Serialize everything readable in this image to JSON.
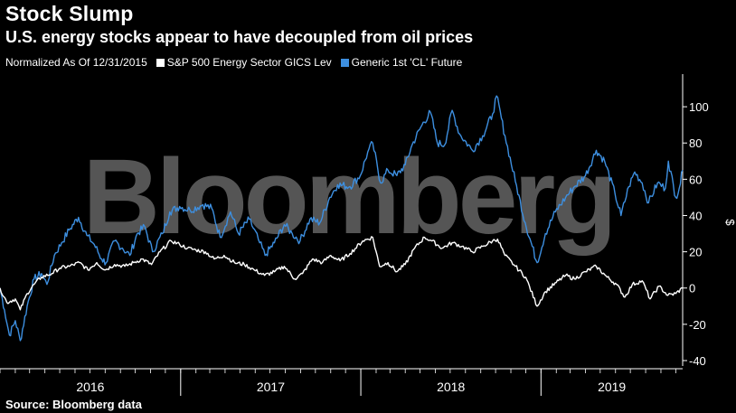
{
  "header": {
    "title": "Stock Slump",
    "subtitle": "U.S. energy stocks appear to have decoupled from oil prices",
    "normalized_note": "Normalized As Of 12/31/2015"
  },
  "watermark": "Bloomberg",
  "source": "Source: Bloomberg data",
  "colors": {
    "background": "#000000",
    "sp500_energy": "#ffffff",
    "crude": "#3d8fe0",
    "axis": "#ffffff"
  },
  "chart_data": {
    "type": "line",
    "title": "Stock Slump",
    "subtitle": "U.S. energy stocks appear to have decoupled from oil prices",
    "ylabel": "$",
    "ylim": [
      -43,
      118
    ],
    "y_ticks": [
      -40,
      -20,
      0,
      20,
      40,
      60,
      80,
      100
    ],
    "y_tick_labels": [
      "-40",
      "-20",
      "0",
      "20",
      "40",
      "60",
      "80",
      "100"
    ],
    "x_range": [
      "2016-01-01",
      "2019-10-15"
    ],
    "x_labels": [
      "2016",
      "2017",
      "2018",
      "2019"
    ],
    "grid": false,
    "legend_position": "top-left",
    "series": [
      {
        "name": "S&P 500 Energy Sector GICS Lev",
        "color": "#ffffff",
        "points": [
          [
            "2016-01-01",
            0
          ],
          [
            "2016-01-15",
            -8
          ],
          [
            "2016-02-01",
            -6
          ],
          [
            "2016-02-11",
            -12
          ],
          [
            "2016-02-25",
            -3
          ],
          [
            "2016-03-10",
            2
          ],
          [
            "2016-03-25",
            6
          ],
          [
            "2016-04-15",
            8
          ],
          [
            "2016-05-01",
            11
          ],
          [
            "2016-05-20",
            12
          ],
          [
            "2016-06-10",
            14
          ],
          [
            "2016-06-27",
            10
          ],
          [
            "2016-07-15",
            14
          ],
          [
            "2016-08-01",
            10
          ],
          [
            "2016-08-20",
            13
          ],
          [
            "2016-09-10",
            12
          ],
          [
            "2016-09-28",
            14
          ],
          [
            "2016-10-15",
            16
          ],
          [
            "2016-11-03",
            13
          ],
          [
            "2016-11-20",
            20
          ],
          [
            "2016-12-13",
            26
          ],
          [
            "2016-12-30",
            24
          ],
          [
            "2017-01-15",
            22
          ],
          [
            "2017-02-01",
            21
          ],
          [
            "2017-02-20",
            20
          ],
          [
            "2017-03-10",
            16
          ],
          [
            "2017-03-30",
            18
          ],
          [
            "2017-04-20",
            14
          ],
          [
            "2017-05-10",
            13
          ],
          [
            "2017-05-30",
            10
          ],
          [
            "2017-06-20",
            7
          ],
          [
            "2017-07-10",
            9
          ],
          [
            "2017-07-30",
            12
          ],
          [
            "2017-08-20",
            5
          ],
          [
            "2017-09-05",
            8
          ],
          [
            "2017-09-25",
            16
          ],
          [
            "2017-10-15",
            14
          ],
          [
            "2017-11-01",
            18
          ],
          [
            "2017-11-20",
            15
          ],
          [
            "2017-12-10",
            19
          ],
          [
            "2018-01-05",
            26
          ],
          [
            "2018-01-25",
            28
          ],
          [
            "2018-02-08",
            12
          ],
          [
            "2018-02-25",
            14
          ],
          [
            "2018-03-15",
            9
          ],
          [
            "2018-04-01",
            13
          ],
          [
            "2018-04-20",
            22
          ],
          [
            "2018-05-10",
            28
          ],
          [
            "2018-05-25",
            26
          ],
          [
            "2018-06-15",
            22
          ],
          [
            "2018-07-05",
            25
          ],
          [
            "2018-07-25",
            23
          ],
          [
            "2018-08-15",
            20
          ],
          [
            "2018-09-05",
            23
          ],
          [
            "2018-09-25",
            26
          ],
          [
            "2018-10-05",
            27
          ],
          [
            "2018-10-20",
            18
          ],
          [
            "2018-11-10",
            12
          ],
          [
            "2018-12-01",
            6
          ],
          [
            "2018-12-24",
            -10
          ],
          [
            "2019-01-10",
            -2
          ],
          [
            "2019-02-01",
            3
          ],
          [
            "2019-02-20",
            7
          ],
          [
            "2019-03-10",
            5
          ],
          [
            "2019-04-01",
            9
          ],
          [
            "2019-04-23",
            12
          ],
          [
            "2019-05-15",
            6
          ],
          [
            "2019-06-03",
            2
          ],
          [
            "2019-06-20",
            -5
          ],
          [
            "2019-07-05",
            2
          ],
          [
            "2019-07-25",
            4
          ],
          [
            "2019-08-10",
            -6
          ],
          [
            "2019-08-28",
            1
          ],
          [
            "2019-09-15",
            -4
          ],
          [
            "2019-10-01",
            -3
          ],
          [
            "2019-10-15",
            0
          ]
        ]
      },
      {
        "name": "Generic 1st 'CL' Future",
        "color": "#3d8fe0",
        "points": [
          [
            "2016-01-01",
            0
          ],
          [
            "2016-01-10",
            -12
          ],
          [
            "2016-01-20",
            -26
          ],
          [
            "2016-02-01",
            -18
          ],
          [
            "2016-02-11",
            -29
          ],
          [
            "2016-02-25",
            -10
          ],
          [
            "2016-03-10",
            5
          ],
          [
            "2016-03-25",
            8
          ],
          [
            "2016-04-05",
            2
          ],
          [
            "2016-04-20",
            18
          ],
          [
            "2016-05-05",
            25
          ],
          [
            "2016-05-20",
            32
          ],
          [
            "2016-06-08",
            39
          ],
          [
            "2016-06-25",
            29
          ],
          [
            "2016-07-10",
            24
          ],
          [
            "2016-07-25",
            16
          ],
          [
            "2016-08-03",
            14
          ],
          [
            "2016-08-20",
            26
          ],
          [
            "2016-09-05",
            22
          ],
          [
            "2016-09-20",
            18
          ],
          [
            "2016-10-05",
            30
          ],
          [
            "2016-10-20",
            34
          ],
          [
            "2016-11-05",
            20
          ],
          [
            "2016-11-25",
            30
          ],
          [
            "2016-12-10",
            42
          ],
          [
            "2016-12-30",
            45
          ],
          [
            "2017-01-20",
            43
          ],
          [
            "2017-02-15",
            46
          ],
          [
            "2017-03-05",
            44
          ],
          [
            "2017-03-22",
            28
          ],
          [
            "2017-04-12",
            42
          ],
          [
            "2017-04-28",
            30
          ],
          [
            "2017-05-20",
            38
          ],
          [
            "2017-06-10",
            25
          ],
          [
            "2017-06-21",
            18
          ],
          [
            "2017-07-10",
            25
          ],
          [
            "2017-07-30",
            35
          ],
          [
            "2017-08-15",
            30
          ],
          [
            "2017-08-31",
            26
          ],
          [
            "2017-09-20",
            38
          ],
          [
            "2017-10-10",
            36
          ],
          [
            "2017-10-30",
            50
          ],
          [
            "2017-11-15",
            57
          ],
          [
            "2017-12-10",
            56
          ],
          [
            "2017-12-31",
            62
          ],
          [
            "2018-01-15",
            75
          ],
          [
            "2018-01-25",
            80
          ],
          [
            "2018-02-10",
            58
          ],
          [
            "2018-02-25",
            65
          ],
          [
            "2018-03-15",
            62
          ],
          [
            "2018-04-01",
            68
          ],
          [
            "2018-04-15",
            79
          ],
          [
            "2018-05-05",
            90
          ],
          [
            "2018-05-22",
            97
          ],
          [
            "2018-06-05",
            80
          ],
          [
            "2018-06-20",
            79
          ],
          [
            "2018-07-05",
            98
          ],
          [
            "2018-07-20",
            85
          ],
          [
            "2018-08-15",
            76
          ],
          [
            "2018-09-05",
            84
          ],
          [
            "2018-09-25",
            96
          ],
          [
            "2018-10-03",
            106
          ],
          [
            "2018-10-20",
            84
          ],
          [
            "2018-11-10",
            59
          ],
          [
            "2018-11-30",
            36
          ],
          [
            "2018-12-24",
            14
          ],
          [
            "2019-01-10",
            30
          ],
          [
            "2019-01-30",
            42
          ],
          [
            "2019-02-20",
            50
          ],
          [
            "2019-03-10",
            56
          ],
          [
            "2019-04-01",
            62
          ],
          [
            "2019-04-23",
            76
          ],
          [
            "2019-05-10",
            70
          ],
          [
            "2019-05-31",
            52
          ],
          [
            "2019-06-12",
            40
          ],
          [
            "2019-06-28",
            56
          ],
          [
            "2019-07-10",
            64
          ],
          [
            "2019-07-25",
            58
          ],
          [
            "2019-08-07",
            47
          ],
          [
            "2019-08-25",
            58
          ],
          [
            "2019-09-10",
            55
          ],
          [
            "2019-09-16",
            70
          ],
          [
            "2019-10-01",
            50
          ],
          [
            "2019-10-08",
            55
          ],
          [
            "2019-10-15",
            65
          ]
        ]
      }
    ]
  }
}
